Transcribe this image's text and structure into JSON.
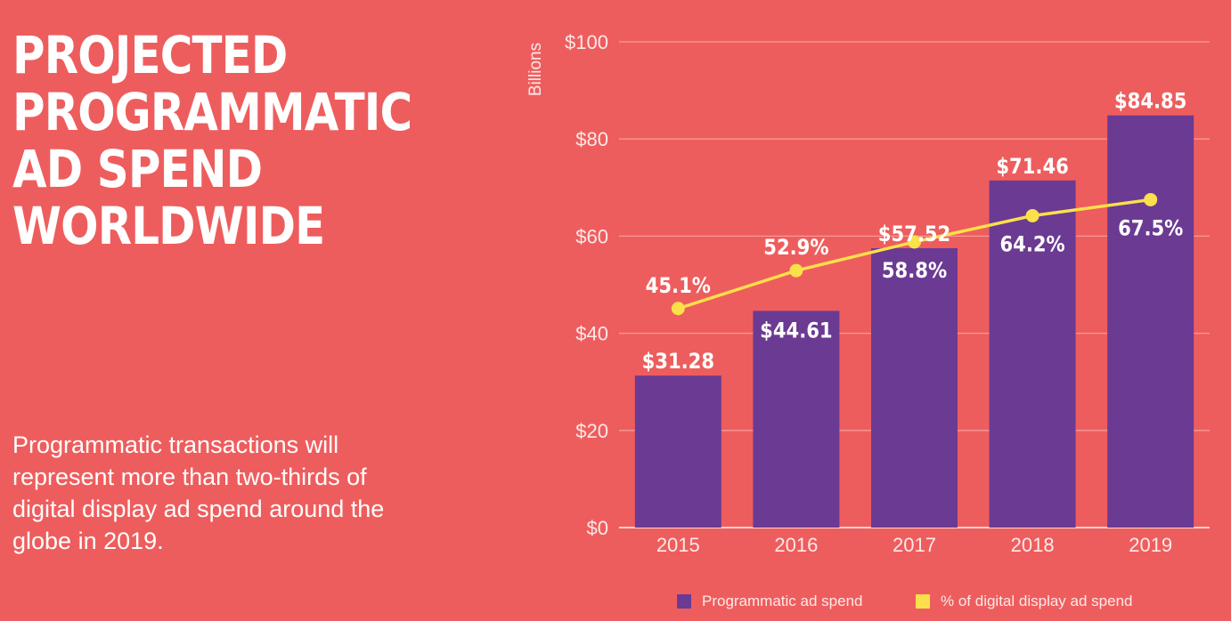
{
  "title_lines": [
    "PROJECTED",
    "PROGRAMMATIC",
    "AD SPEND",
    "WORLDWIDE"
  ],
  "subtitle": "Programmatic transactions will represent more than two-thirds of digital display ad spend around the globe in 2019.",
  "colors": {
    "background": "#ee5d5d",
    "bar": "#6b3a93",
    "line": "#fae04a",
    "grid": "#f59a9a"
  },
  "chart_data": {
    "type": "bar",
    "categories": [
      "2015",
      "2016",
      "2017",
      "2018",
      "2019"
    ],
    "ylabel": "Billions",
    "ylim": [
      0,
      100
    ],
    "yticks": [
      0,
      20,
      40,
      60,
      80,
      100
    ],
    "ytick_labels": [
      "$0",
      "$20",
      "$40",
      "$60",
      "$80",
      "$100"
    ],
    "grid": true,
    "series": [
      {
        "name": "Programmatic ad spend",
        "type": "bar",
        "values": [
          31.28,
          44.61,
          57.52,
          71.46,
          84.85
        ],
        "labels": [
          "$31.28",
          "$44.61",
          "$57.52",
          "$71.46",
          "$84.85"
        ]
      },
      {
        "name": "% of digital display ad spend",
        "type": "line",
        "values": [
          45.1,
          52.9,
          58.8,
          64.2,
          67.5
        ],
        "labels": [
          "45.1%",
          "52.9%",
          "58.8%",
          "64.2%",
          "67.5%"
        ]
      }
    ],
    "legend": {
      "placement": "bottom-right",
      "entries": [
        "Programmatic ad spend",
        "% of digital display ad spend"
      ]
    }
  }
}
